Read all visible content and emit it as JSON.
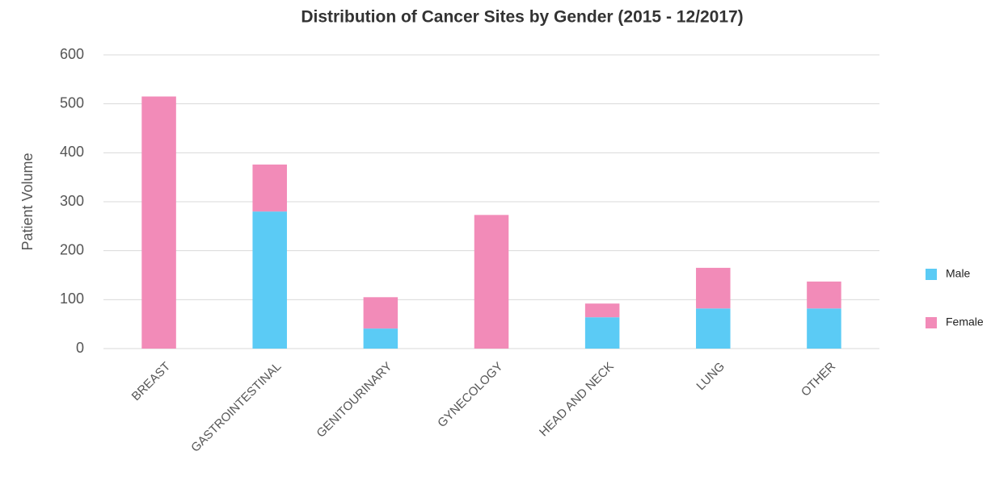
{
  "chart_data": {
    "type": "stacked_bar",
    "title": "Distribution of Cancer Sites by Gender (2015 - 12/2017)",
    "y_label": "Patient Volume",
    "categories": [
      "BREAST",
      "GASTROINTESTINAL",
      "GENITOURINARY",
      "GYNECOLOGY",
      "HEAD AND NECK",
      "LUNG",
      "OTHER"
    ],
    "series": [
      {
        "name": "Male",
        "color": "#5bcbf5",
        "values": [
          0,
          280,
          41,
          0,
          64,
          82,
          82
        ]
      },
      {
        "name": "Female",
        "color": "#f28bb8",
        "values": [
          515,
          96,
          64,
          273,
          28,
          83,
          55
        ]
      }
    ],
    "ylim": [
      0,
      600
    ],
    "yticks": [
      0,
      100,
      200,
      300,
      400,
      500,
      600
    ],
    "grid": true,
    "legend": "right"
  }
}
